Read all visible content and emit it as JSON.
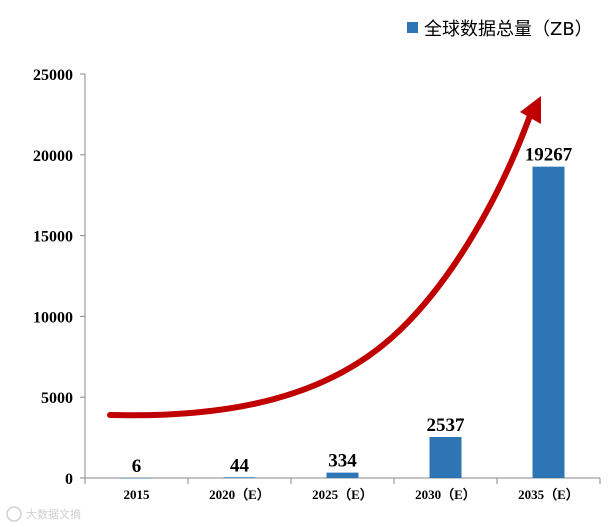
{
  "chart_data": {
    "type": "bar",
    "categories": [
      "2015",
      "2020（E）",
      "2025（E）",
      "2030（E）",
      "2035（E）"
    ],
    "series": [
      {
        "name": "全球数据总量（ZB）",
        "values": [
          6,
          44,
          334,
          2537,
          19267
        ]
      }
    ],
    "data_labels": [
      "6",
      "44",
      "334",
      "2537",
      "19267"
    ],
    "y_ticks": [
      "0",
      "5000",
      "10000",
      "15000",
      "20000",
      "25000"
    ],
    "ylim": [
      0,
      25000
    ],
    "grid": false,
    "legend": "top-right",
    "bar_color": "#2e75b6",
    "trend_arrow_color": "#c00000"
  },
  "watermark": "大数据文摘"
}
